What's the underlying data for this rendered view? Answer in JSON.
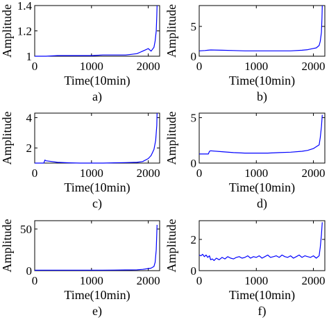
{
  "chart_data": [
    {
      "type": "line",
      "panel_label": "a)",
      "xlabel": "Time(10min)",
      "ylabel": "Amplitude",
      "xlim": [
        0,
        2200
      ],
      "ylim": [
        1,
        1.4
      ],
      "xticks": [
        0,
        1000,
        2000
      ],
      "yticks": [
        1,
        1.2,
        1.4
      ],
      "yticklabels": [
        "1",
        "1.2",
        "1.4"
      ],
      "color": "#0000ff",
      "series": [
        {
          "x": [
            0,
            100,
            200,
            400,
            600,
            800,
            1000,
            1200,
            1400,
            1600,
            1700,
            1800,
            1850,
            1900,
            1950,
            2000,
            2050,
            2100,
            2120,
            2140,
            2150,
            2155
          ],
          "y": [
            1.0,
            1.0,
            1.0,
            1.005,
            1.005,
            1.005,
            1.005,
            1.01,
            1.01,
            1.01,
            1.015,
            1.02,
            1.03,
            1.04,
            1.05,
            1.06,
            1.04,
            1.07,
            1.12,
            1.2,
            1.32,
            1.4
          ]
        }
      ]
    },
    {
      "type": "line",
      "panel_label": "b)",
      "xlabel": "Time(10min)",
      "ylabel": "Amplitude",
      "xlim": [
        0,
        2200
      ],
      "ylim": [
        0,
        8.5
      ],
      "xticks": [
        0,
        1000,
        2000
      ],
      "yticks": [
        0,
        5
      ],
      "yticklabels": [
        "0",
        "5"
      ],
      "color": "#0000ff",
      "series": [
        {
          "x": [
            0,
            100,
            150,
            200,
            400,
            600,
            800,
            1000,
            1200,
            1400,
            1600,
            1800,
            1900,
            2000,
            2050,
            2100,
            2120,
            2140,
            2150,
            2155
          ],
          "y": [
            0.9,
            0.95,
            1.0,
            1.05,
            1.0,
            0.95,
            0.9,
            0.9,
            0.9,
            0.9,
            0.9,
            1.0,
            1.1,
            1.3,
            1.4,
            1.8,
            2.5,
            4.0,
            6.5,
            8.5
          ]
        }
      ]
    },
    {
      "type": "line",
      "panel_label": "c)",
      "xlabel": "Time(10min)",
      "ylabel": "Amplitude",
      "xlim": [
        0,
        2200
      ],
      "ylim": [
        1,
        4.3
      ],
      "xticks": [
        0,
        1000,
        2000
      ],
      "yticks": [
        2,
        4
      ],
      "yticklabels": [
        "2",
        "4"
      ],
      "color": "#0000ff",
      "series": [
        {
          "x": [
            0,
            100,
            160,
            180,
            200,
            400,
            600,
            800,
            1000,
            1200,
            1400,
            1600,
            1800,
            1900,
            2000,
            2050,
            2100,
            2130,
            2150,
            2155
          ],
          "y": [
            1.0,
            1.0,
            1.0,
            1.2,
            1.15,
            1.05,
            1.02,
            1.0,
            1.0,
            1.0,
            1.02,
            1.03,
            1.05,
            1.1,
            1.3,
            1.5,
            1.9,
            2.5,
            3.5,
            4.3
          ]
        }
      ]
    },
    {
      "type": "line",
      "panel_label": "d)",
      "xlabel": "Time(10min)",
      "ylabel": "Amplitude",
      "xlim": [
        0,
        2200
      ],
      "ylim": [
        0,
        5.5
      ],
      "xticks": [
        0,
        1000,
        2000
      ],
      "yticks": [
        0,
        5
      ],
      "yticklabels": [
        "0",
        "5"
      ],
      "color": "#0000ff",
      "series": [
        {
          "x": [
            0,
            100,
            160,
            180,
            200,
            400,
            600,
            800,
            1000,
            1200,
            1400,
            1600,
            1800,
            1900,
            2000,
            2050,
            2100,
            2120,
            2140,
            2155
          ],
          "y": [
            1.0,
            1.0,
            1.0,
            1.3,
            1.35,
            1.25,
            1.15,
            1.1,
            1.1,
            1.1,
            1.15,
            1.2,
            1.3,
            1.4,
            1.6,
            1.8,
            2.0,
            2.8,
            4.0,
            5.3
          ]
        }
      ]
    },
    {
      "type": "line",
      "panel_label": "e)",
      "xlabel": "Time(10min)",
      "ylabel": "Amplitude",
      "xlim": [
        0,
        2200
      ],
      "ylim": [
        0,
        60
      ],
      "xticks": [
        0,
        1000,
        2000
      ],
      "yticks": [
        0,
        50
      ],
      "yticklabels": [
        "0",
        "50"
      ],
      "color": "#0000ff",
      "series": [
        {
          "x": [
            0,
            200,
            400,
            600,
            800,
            1000,
            1200,
            1400,
            1600,
            1800,
            1900,
            2000,
            2050,
            2100,
            2120,
            2140,
            2150,
            2155
          ],
          "y": [
            0.5,
            0.6,
            0.6,
            0.6,
            0.6,
            0.6,
            0.6,
            0.7,
            0.8,
            1.0,
            1.5,
            2.5,
            3.0,
            5.0,
            10.0,
            25.0,
            45.0,
            55.0
          ]
        }
      ]
    },
    {
      "type": "line",
      "panel_label": "f)",
      "xlabel": "Time(10min)",
      "ylabel": "Amplitude",
      "xlim": [
        0,
        2200
      ],
      "ylim": [
        0,
        3.2
      ],
      "xticks": [
        0,
        1000,
        2000
      ],
      "yticks": [
        0,
        2
      ],
      "yticklabels": [
        "0",
        "2"
      ],
      "color": "#0000ff",
      "series": [
        {
          "x": [
            0,
            30,
            60,
            90,
            120,
            150,
            180,
            200,
            230,
            260,
            300,
            350,
            400,
            450,
            500,
            550,
            600,
            650,
            700,
            750,
            800,
            850,
            900,
            950,
            1000,
            1050,
            1100,
            1150,
            1200,
            1250,
            1300,
            1350,
            1400,
            1450,
            1500,
            1550,
            1600,
            1650,
            1700,
            1750,
            1800,
            1850,
            1900,
            1950,
            2000,
            2050,
            2100,
            2120,
            2140,
            2155
          ],
          "y": [
            1.0,
            0.95,
            1.05,
            0.9,
            1.0,
            0.85,
            0.95,
            0.7,
            0.75,
            0.65,
            0.8,
            0.7,
            0.85,
            0.75,
            0.9,
            0.8,
            0.75,
            0.85,
            0.9,
            0.8,
            0.85,
            0.95,
            0.8,
            0.9,
            0.85,
            0.95,
            0.8,
            0.9,
            1.0,
            0.85,
            0.9,
            0.95,
            0.85,
            1.0,
            0.9,
            0.85,
            0.95,
            0.8,
            0.9,
            1.0,
            0.85,
            0.95,
            0.9,
            0.85,
            0.95,
            0.8,
            0.95,
            1.5,
            2.3,
            3.1
          ]
        }
      ]
    }
  ]
}
